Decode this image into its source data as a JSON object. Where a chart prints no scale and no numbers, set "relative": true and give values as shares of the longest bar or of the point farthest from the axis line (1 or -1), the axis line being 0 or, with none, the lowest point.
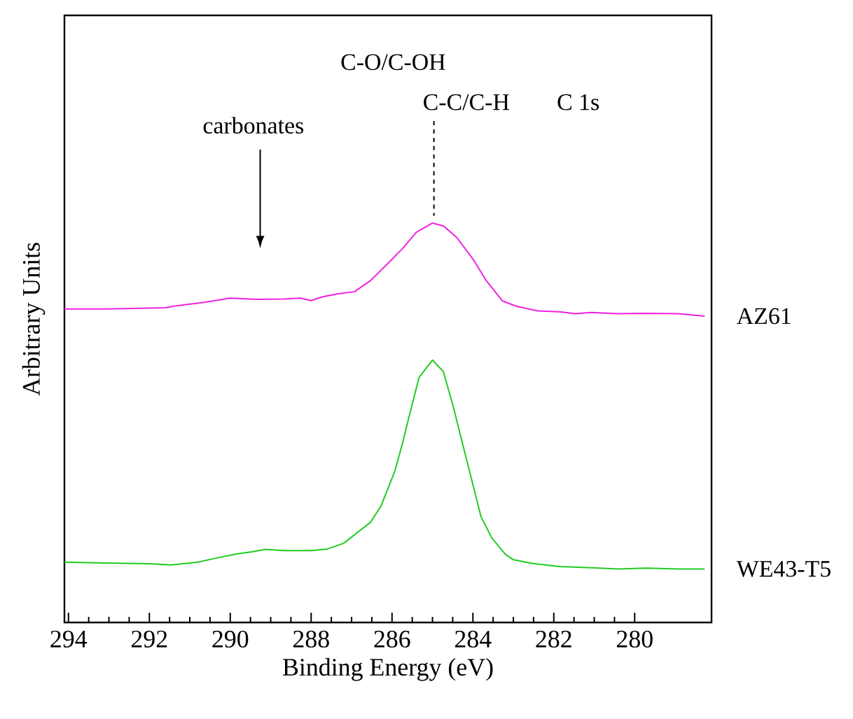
{
  "chart_data": {
    "type": "line",
    "relative": true,
    "xlabel": "Binding Energy (eV)",
    "ylabel": "Arbitrary Units",
    "xlim": [
      294.1,
      278.1
    ],
    "xticks": [
      294,
      292,
      290,
      288,
      286,
      284,
      282,
      280
    ],
    "annotations": [
      "C-O/C-OH",
      "C 1s",
      "C-C/C-H",
      "carbonates"
    ],
    "series": [
      {
        "name": "AZ61",
        "color": "#ee22dd",
        "x": [
          294.1,
          293.07,
          292.4,
          291.6,
          291.33,
          290.67,
          290.0,
          289.33,
          288.67,
          288.27,
          288.0,
          287.73,
          287.33,
          286.93,
          286.53,
          286.13,
          285.73,
          285.4,
          285.0,
          284.73,
          284.4,
          284.0,
          283.67,
          283.27,
          282.93,
          282.4,
          281.87,
          281.47,
          281.07,
          280.4,
          279.73,
          278.93,
          278.27
        ],
        "values": [
          0.785,
          0.785,
          0.786,
          0.788,
          0.793,
          0.801,
          0.812,
          0.809,
          0.81,
          0.812,
          0.806,
          0.815,
          0.823,
          0.828,
          0.856,
          0.896,
          0.937,
          0.977,
          1.0,
          0.993,
          0.964,
          0.91,
          0.856,
          0.805,
          0.792,
          0.78,
          0.778,
          0.773,
          0.776,
          0.773,
          0.774,
          0.773,
          0.767
        ]
      },
      {
        "name": "WE43-T5",
        "color": "#22cc22",
        "x": [
          294.1,
          293.07,
          292.0,
          291.47,
          290.8,
          290.4,
          289.87,
          289.47,
          289.13,
          288.67,
          288.0,
          287.6,
          287.2,
          286.87,
          286.53,
          286.27,
          285.93,
          285.73,
          285.6,
          285.33,
          285.0,
          284.73,
          284.47,
          284.27,
          284.0,
          283.8,
          283.53,
          283.2,
          283.0,
          282.53,
          281.87,
          281.07,
          280.4,
          279.73,
          278.93,
          278.27
        ],
        "values": [
          0.151,
          0.149,
          0.147,
          0.144,
          0.151,
          0.16,
          0.171,
          0.177,
          0.183,
          0.18,
          0.18,
          0.184,
          0.198,
          0.224,
          0.251,
          0.292,
          0.379,
          0.453,
          0.507,
          0.614,
          0.657,
          0.628,
          0.534,
          0.453,
          0.345,
          0.265,
          0.211,
          0.171,
          0.157,
          0.148,
          0.14,
          0.137,
          0.134,
          0.136,
          0.134,
          0.134
        ]
      }
    ]
  }
}
